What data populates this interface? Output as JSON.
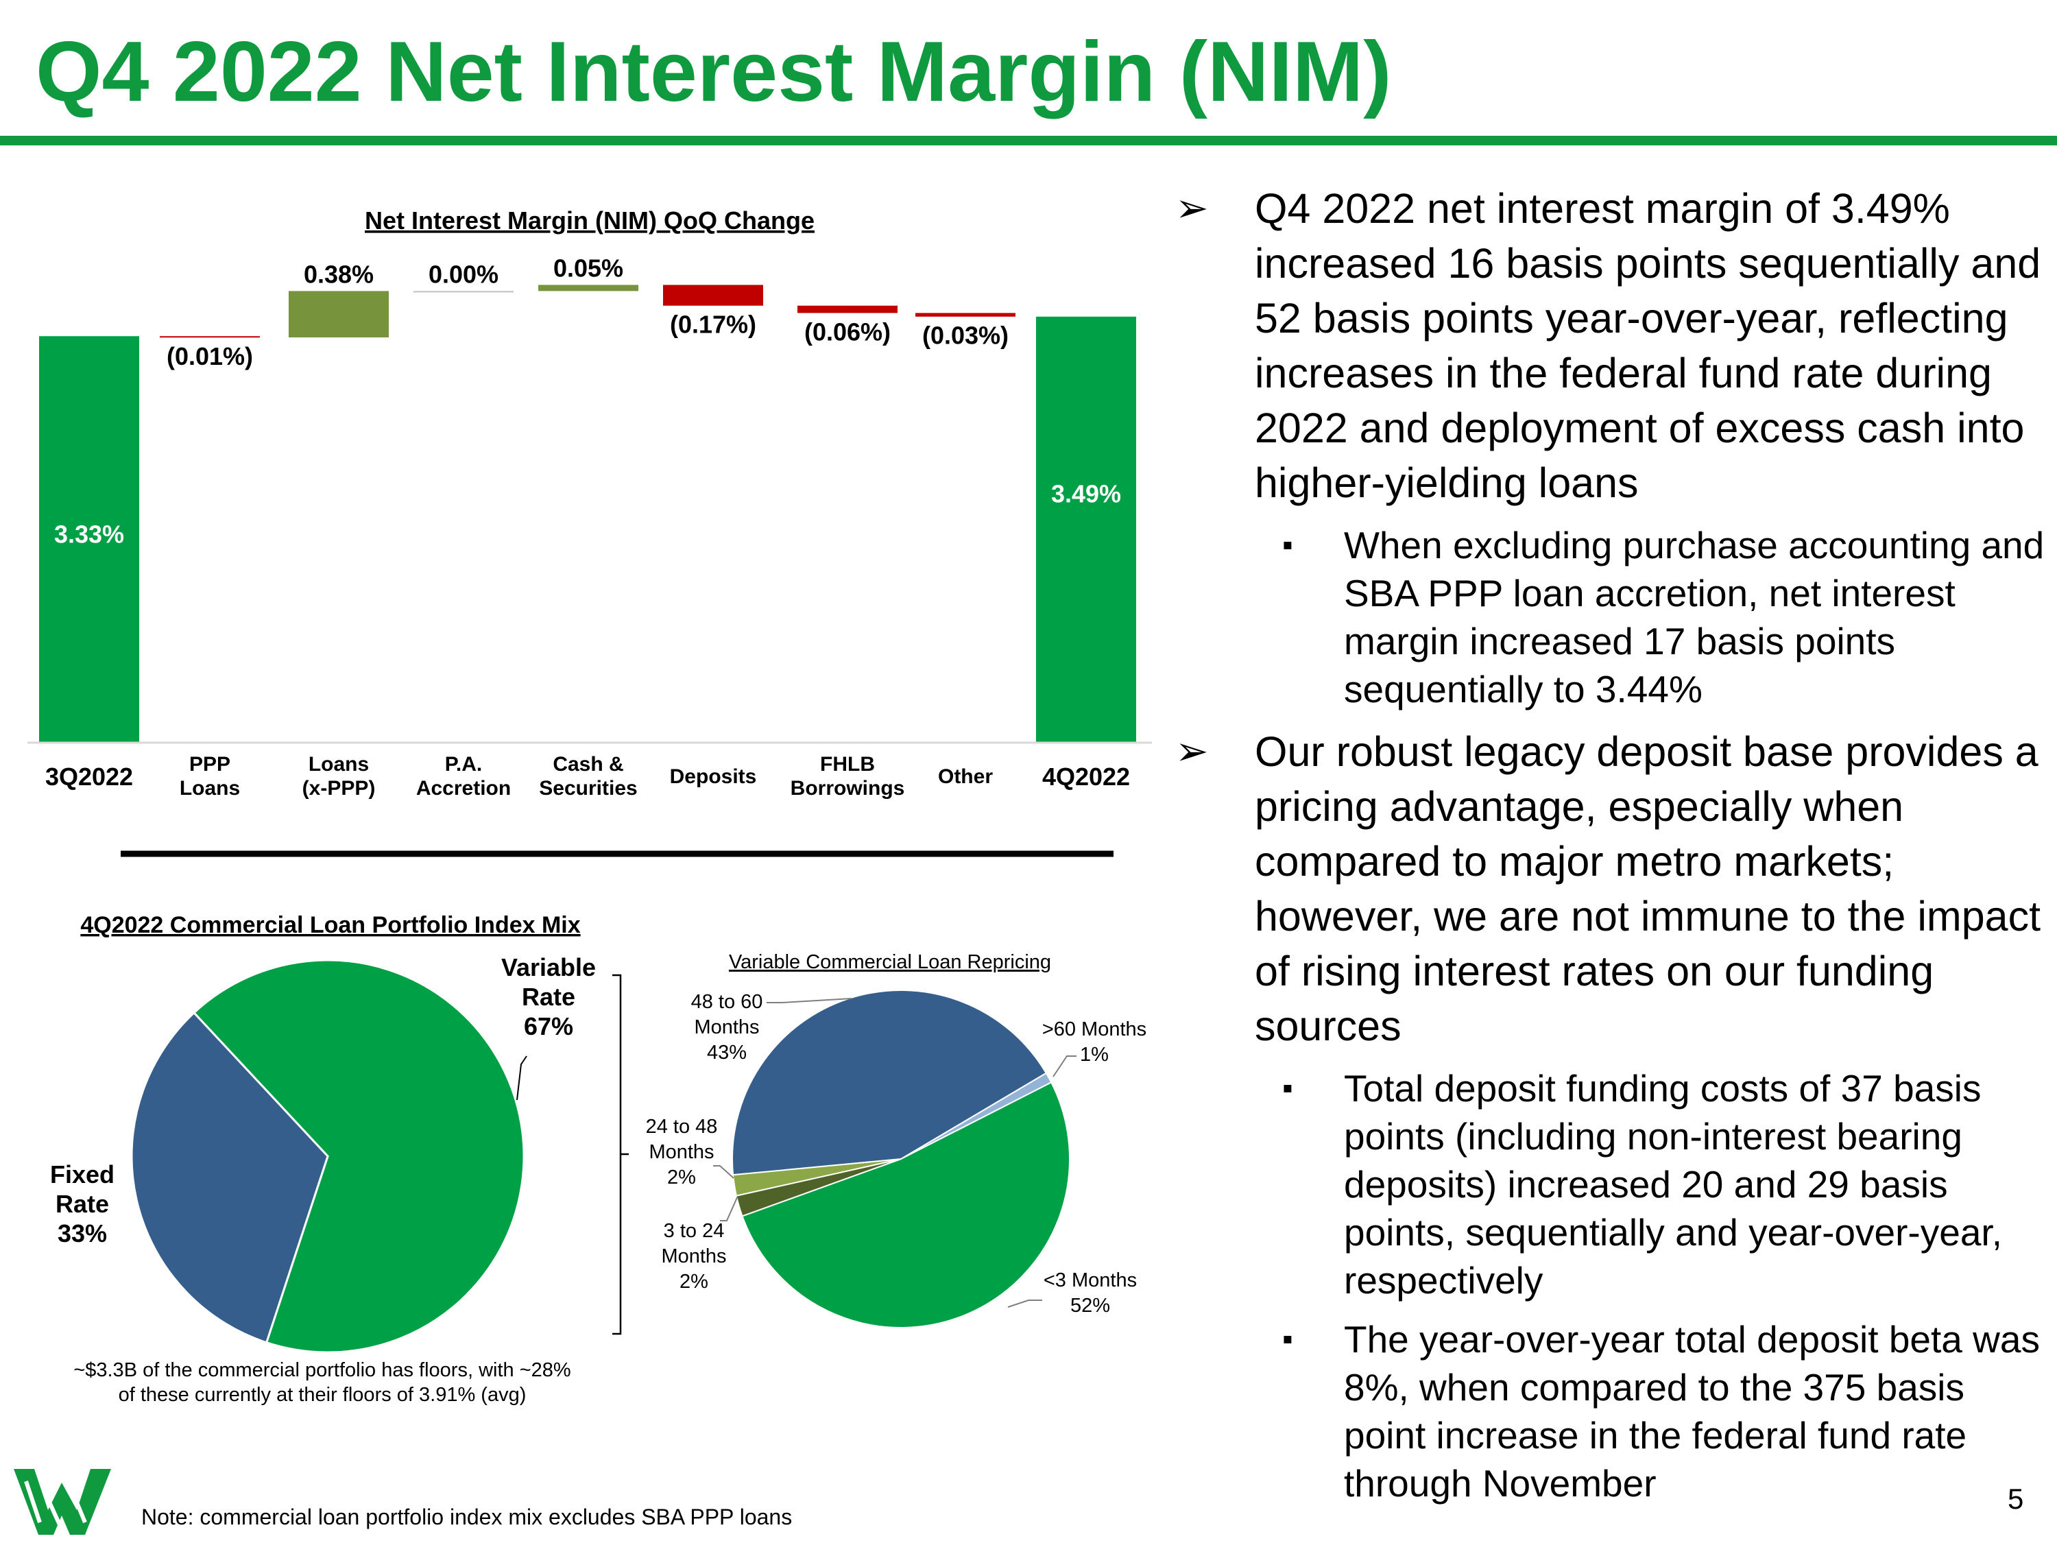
{
  "page": {
    "title": "Q4 2022 Net Interest Margin (NIM)",
    "page_number": "5",
    "note": "Note: commercial loan portfolio index mix excludes SBA PPP loans",
    "colors": {
      "brand_green": "#109a3f",
      "chart_green": "#00a046",
      "olive": "#77933c",
      "red": "#c00000",
      "blue": "#355e8d",
      "light_blue": "#95b3d7",
      "light_olive": "#8ba748",
      "dark_olive": "#4f6228"
    }
  },
  "waterfall": {
    "chart_data": {
      "type": "bar",
      "subtype": "waterfall",
      "title": "Net Interest Margin (NIM) QoQ Change",
      "units": "percent",
      "categories": [
        "3Q2022",
        "PPP Loans",
        "Loans (x-PPP)",
        "P.A. Accretion",
        "Cash & Securities",
        "Deposits",
        "FHLB Borrowings",
        "Other",
        "4Q2022"
      ],
      "category_lines": [
        [
          "3Q2022"
        ],
        [
          "PPP",
          "Loans"
        ],
        [
          "Loans",
          "(x-PPP)"
        ],
        [
          "P.A.",
          "Accretion"
        ],
        [
          "Cash &",
          "Securities"
        ],
        [
          "Deposits"
        ],
        [
          "FHLB",
          "Borrowings"
        ],
        [
          "Other"
        ],
        [
          "4Q2022"
        ]
      ],
      "values": [
        3.33,
        -0.01,
        0.38,
        0.0,
        0.05,
        -0.17,
        -0.06,
        -0.03,
        3.49
      ],
      "bar_kind": [
        "total",
        "delta",
        "delta",
        "delta",
        "delta",
        "delta",
        "delta",
        "delta",
        "total"
      ],
      "labels": [
        "3.33%",
        "(0.01%)",
        "0.38%",
        "0.00%",
        "0.05%",
        "(0.17%)",
        "(0.06%)",
        "(0.03%)",
        "3.49%"
      ],
      "value_axis": {
        "min": 0,
        "max": 3.82,
        "visible": false
      }
    }
  },
  "index_mix": {
    "chart_data": {
      "type": "pie",
      "title": "4Q2022 Commercial Loan Portfolio Index Mix",
      "slices": [
        {
          "name": "Variable Rate",
          "value": 67,
          "label_lines": [
            "Variable",
            "Rate",
            "67%"
          ]
        },
        {
          "name": "Fixed Rate",
          "value": 33,
          "label_lines": [
            "Fixed",
            "Rate",
            "33%"
          ]
        }
      ]
    },
    "footnote_lines": [
      "~$3.3B of the commercial portfolio has floors, with ~28%",
      "of these currently at their floors of 3.91% (avg)"
    ]
  },
  "repricing": {
    "chart_data": {
      "type": "pie",
      "title": "Variable Commercial Loan Repricing",
      "slices": [
        {
          "name": ">60 Months",
          "value": 1,
          "label_lines": [
            ">60 Months",
            "1%"
          ]
        },
        {
          "name": "<3 Months",
          "value": 52,
          "label_lines": [
            "<3 Months",
            "52%"
          ]
        },
        {
          "name": "3 to 24 Months",
          "value": 2,
          "label_lines": [
            "3 to 24",
            "Months",
            "2%"
          ]
        },
        {
          "name": "24 to 48 Months",
          "value": 2,
          "label_lines": [
            "24 to 48",
            "Months",
            "2%"
          ]
        },
        {
          "name": "48 to 60 Months",
          "value": 43,
          "label_lines": [
            "48 to 60",
            "Months",
            "43%"
          ]
        }
      ]
    }
  },
  "bullets": [
    {
      "marker": "➢",
      "text": "Q4 2022 net interest margin of 3.49% increased 16 basis points sequentially and 52 basis points year-over-year, reflecting increases in the federal fund rate during 2022 and deployment of excess cash into higher-yielding loans",
      "subs": [
        {
          "marker": "▪",
          "text": "When excluding purchase accounting and SBA PPP loan accretion, net interest margin increased 17 basis points sequentially to 3.44%"
        }
      ]
    },
    {
      "marker": "➢",
      "text": "Our robust legacy deposit base provides a pricing advantage, especially when compared to major metro markets; however, we are not immune to the impact of rising interest rates on our funding sources",
      "subs": [
        {
          "marker": "▪",
          "text": "Total deposit funding costs of 37 basis points (including non-interest bearing deposits) increased 20 and 29 basis points, sequentially and year-over-year, respectively"
        },
        {
          "marker": "▪",
          "text": "The year-over-year total deposit beta was 8%, when compared to the 375 basis point increase in the federal fund rate through November"
        }
      ]
    }
  ]
}
